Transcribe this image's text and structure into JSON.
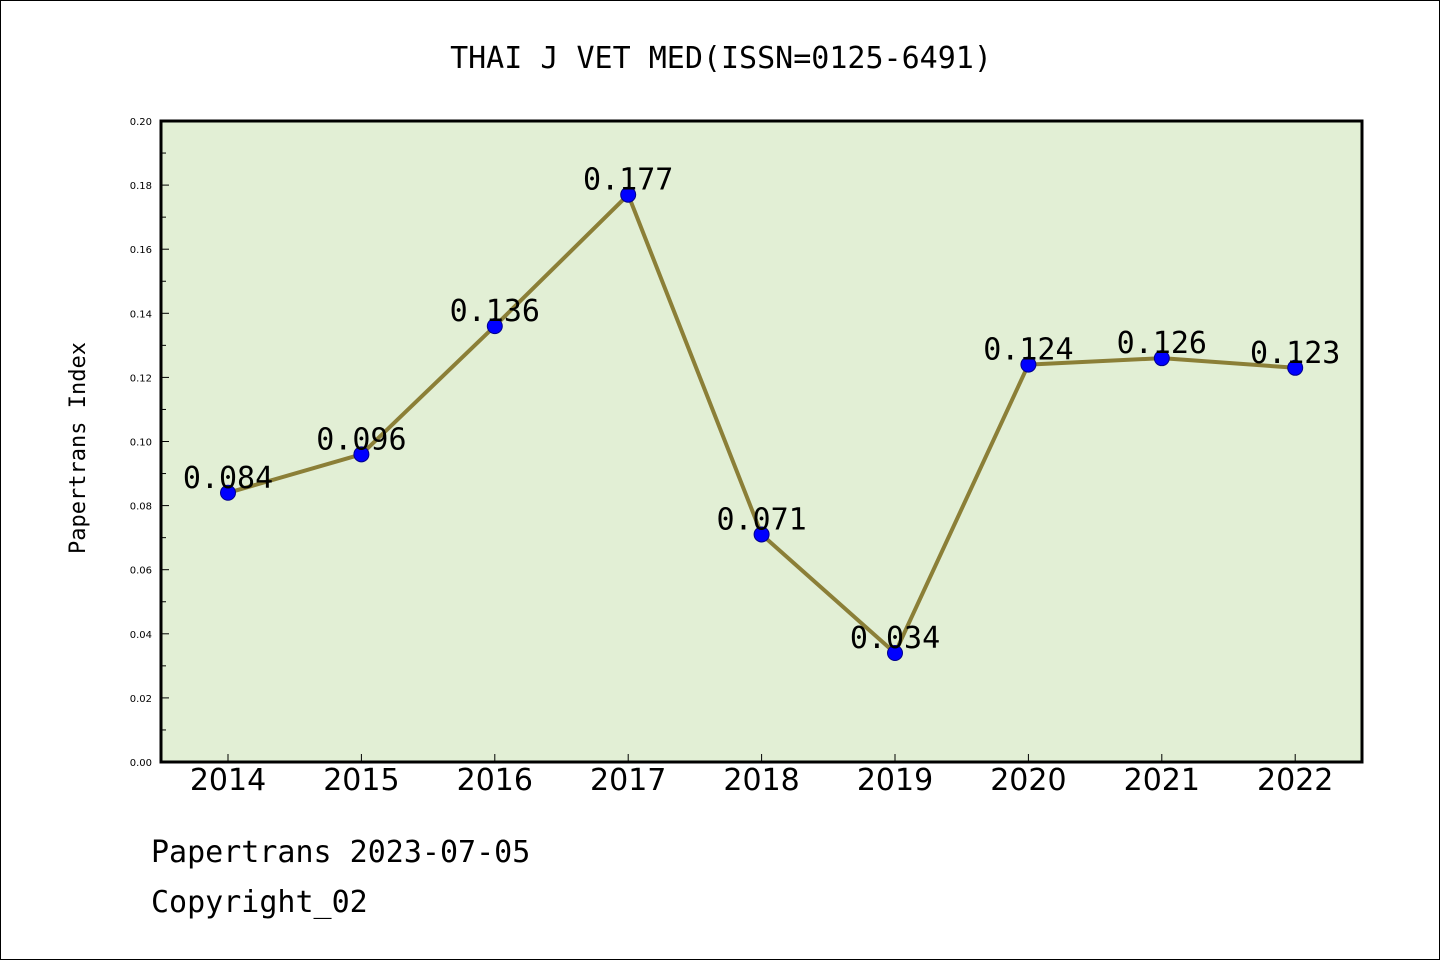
{
  "chart_data": {
    "type": "line",
    "title": "THAI J VET MED(ISSN=0125-6491)",
    "xlabel": "",
    "ylabel": "Papertrans Index",
    "categories": [
      "2014",
      "2015",
      "2016",
      "2017",
      "2018",
      "2019",
      "2020",
      "2021",
      "2022"
    ],
    "values": [
      0.084,
      0.096,
      0.136,
      0.177,
      0.071,
      0.034,
      0.124,
      0.126,
      0.123
    ],
    "data_labels": [
      "0.084",
      "0.096",
      "0.136",
      "0.177",
      "0.071",
      "0.034",
      "0.124",
      "0.126",
      "0.123"
    ],
    "ylim": [
      0,
      0.2
    ],
    "yticks": [
      "0.00",
      "0.02",
      "0.04",
      "0.06",
      "0.08",
      "0.10",
      "0.12",
      "0.14",
      "0.16",
      "0.18",
      "0.20"
    ],
    "grid": false,
    "legend": "none",
    "colors": {
      "plot_background": "#e2efd5",
      "line": "#8b7f37",
      "marker": "#0000ff"
    }
  },
  "footer": {
    "line1": "Papertrans 2023-07-05",
    "line2": "Copyright_02"
  }
}
